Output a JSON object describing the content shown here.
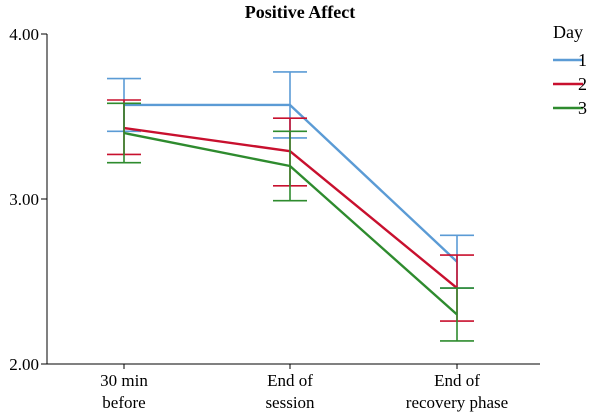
{
  "chart_data": {
    "type": "line",
    "title": "Positive Affect",
    "xlabel": "",
    "ylabel": "",
    "categories": [
      [
        "30 min",
        "before"
      ],
      [
        "End of",
        "session"
      ],
      [
        "End of",
        "recovery phase"
      ]
    ],
    "ylim": [
      2.0,
      4.0
    ],
    "yticks": [
      "2.00",
      "3.00",
      "4.00"
    ],
    "ytick_values": [
      2.0,
      3.0,
      4.0
    ],
    "grid": false,
    "legend": {
      "title": "Day",
      "position": "right"
    },
    "series": [
      {
        "name": "1",
        "color": "#5b9bd5",
        "values": [
          3.57,
          3.57,
          2.62
        ],
        "err_low": [
          3.41,
          3.37,
          2.46
        ],
        "err_high": [
          3.73,
          3.77,
          2.78
        ]
      },
      {
        "name": "2",
        "color": "#c8102e",
        "values": [
          3.43,
          3.29,
          2.46
        ],
        "err_low": [
          3.27,
          3.08,
          2.26
        ],
        "err_high": [
          3.6,
          3.49,
          2.66
        ]
      },
      {
        "name": "3",
        "color": "#2e8b2e",
        "values": [
          3.4,
          3.2,
          2.3
        ],
        "err_low": [
          3.22,
          2.99,
          2.14
        ],
        "err_high": [
          3.58,
          3.41,
          2.46
        ]
      }
    ]
  }
}
